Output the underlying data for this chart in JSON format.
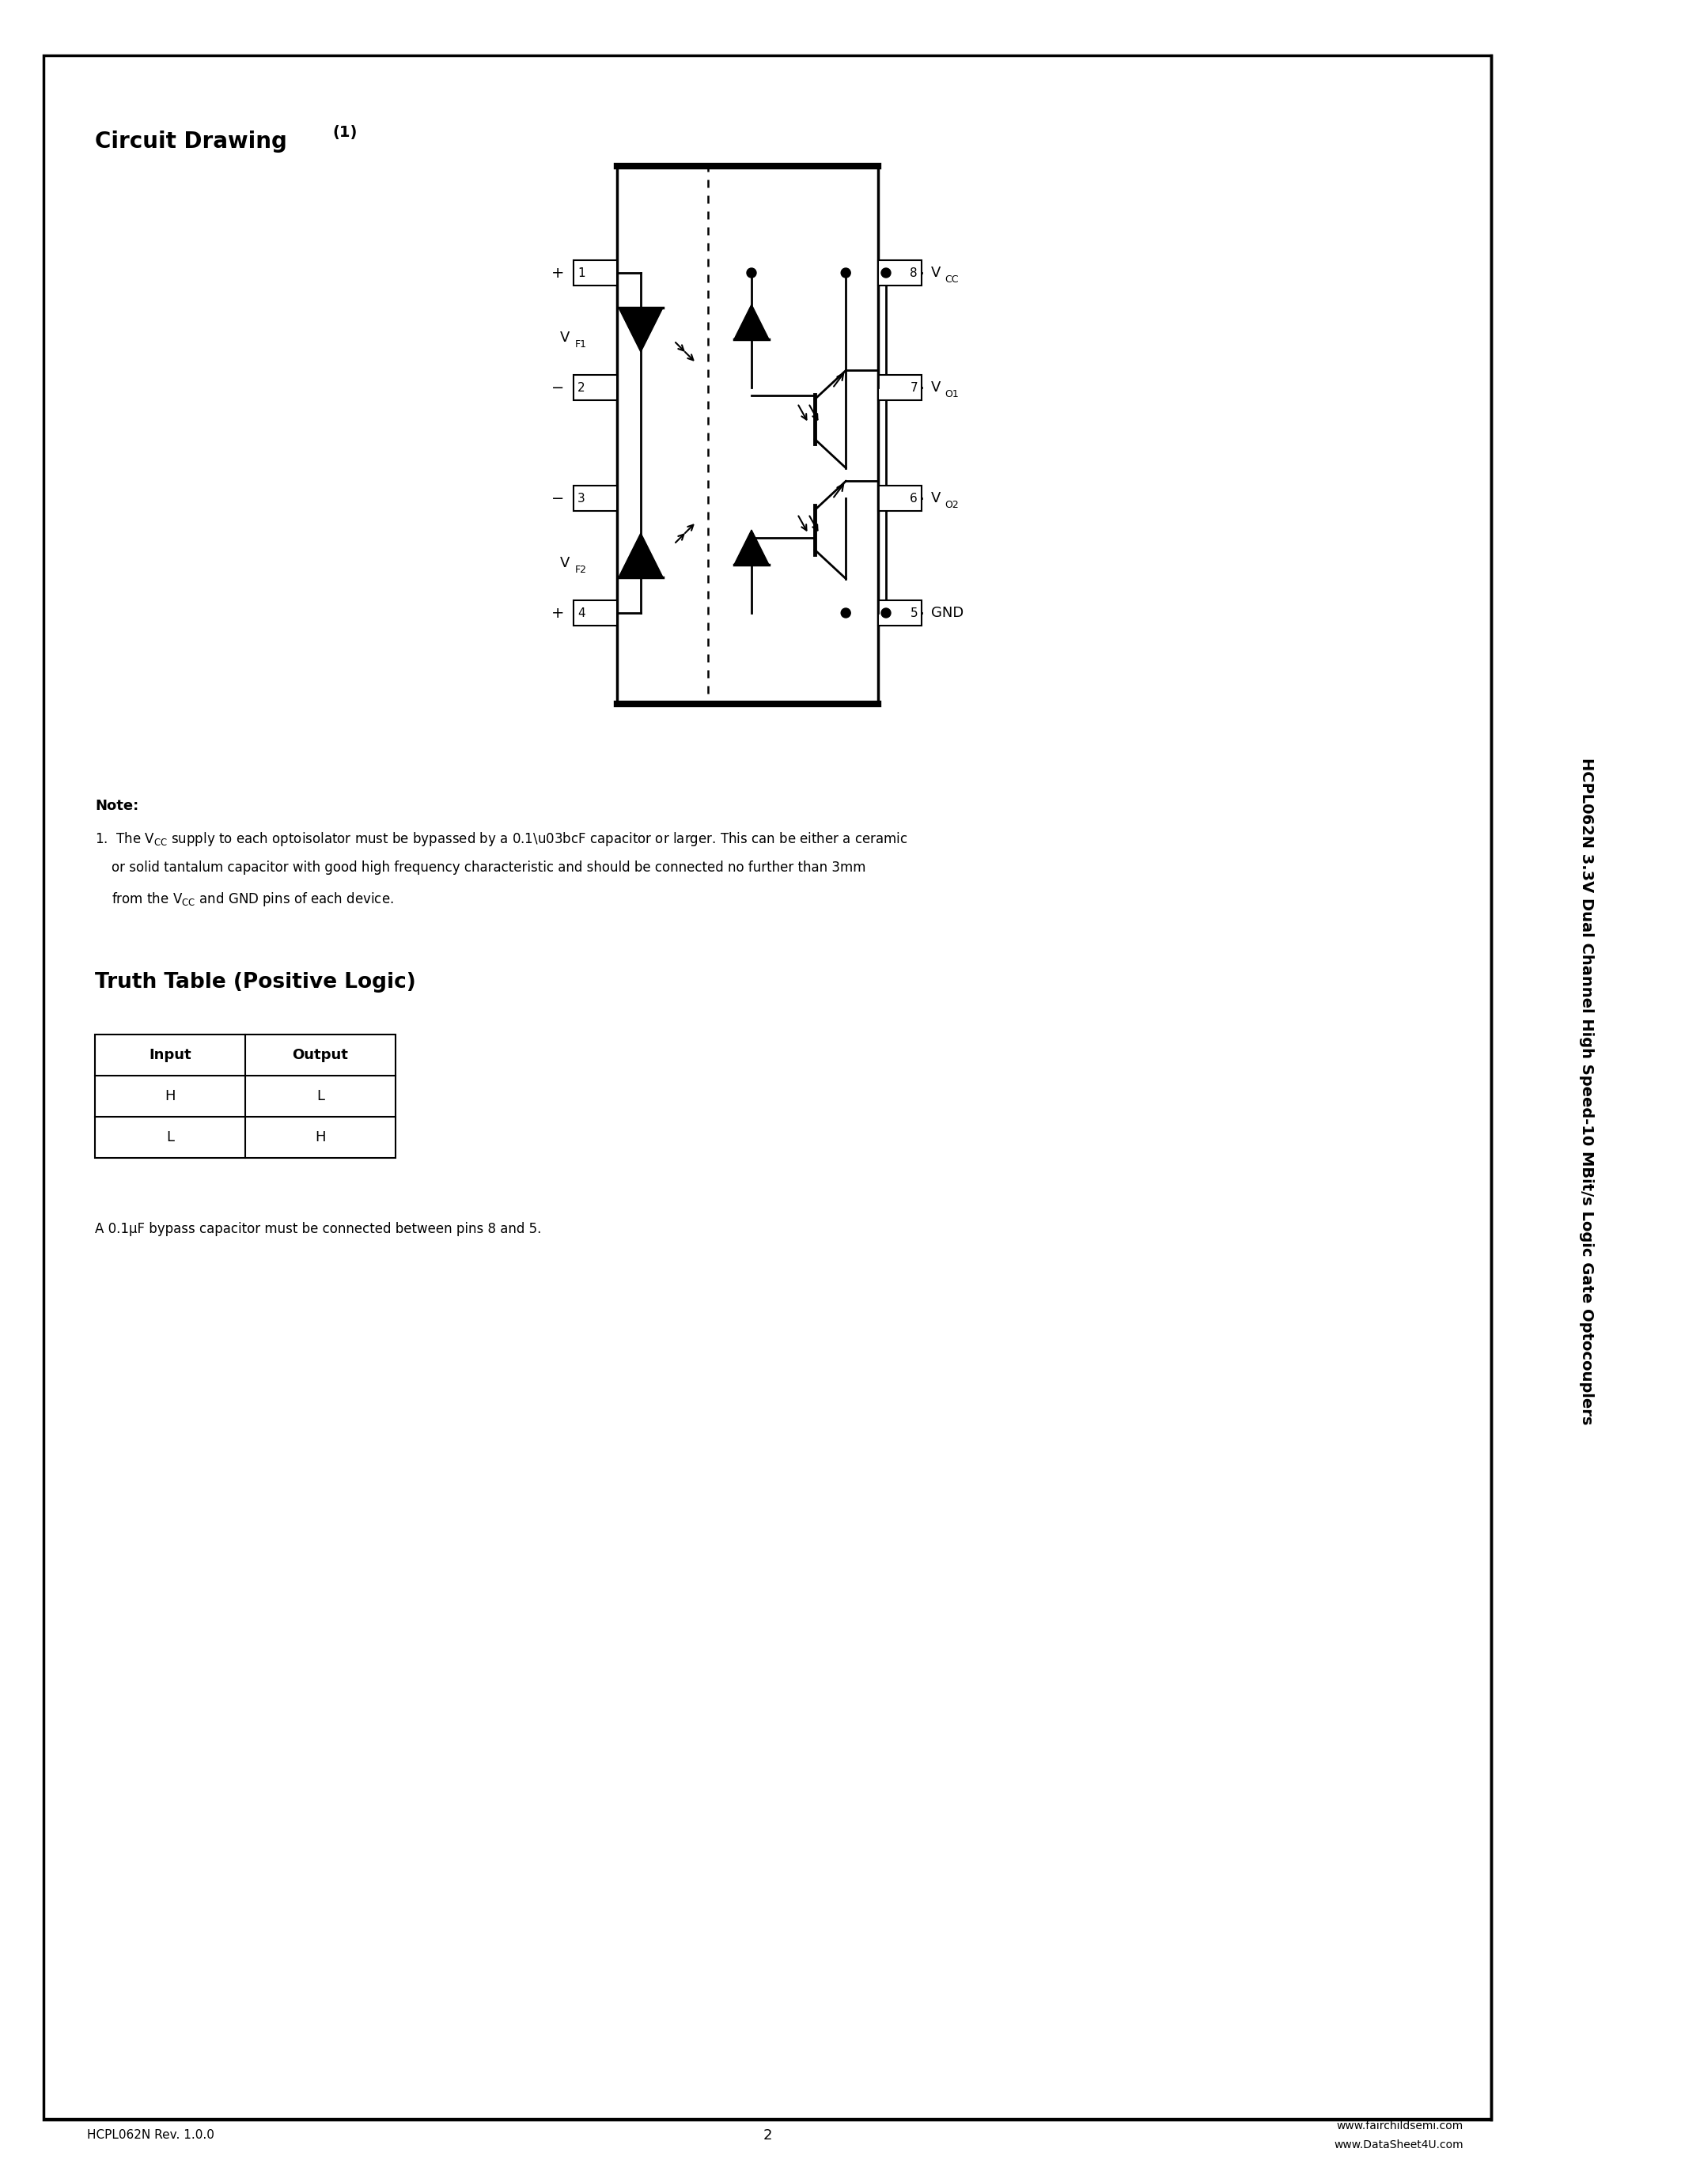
{
  "page_bg": "#ffffff",
  "circuit_title": "Circuit Drawing",
  "circuit_title_super": "(1)",
  "note_bold": "Note:",
  "note_line1": "1.  The V",
  "note_line1b": "CC",
  "note_line1c": " supply to each optoisolator must be bypassed by a 0.1μF capacitor or larger. This can be either a ceramic",
  "note_line2": "    or solid tantalum capacitor with good high frequency characteristic and should be connected no further than 3mm",
  "note_line3a": "    from the V",
  "note_line3b": "CC",
  "note_line3c": " and GND pins of each device.",
  "truth_table_title": "Truth Table (Positive Logic)",
  "truth_table_headers": [
    "Input",
    "Output"
  ],
  "truth_table_rows": [
    [
      "H",
      "L"
    ],
    [
      "L",
      "H"
    ]
  ],
  "bypass_note": "A 0.1μF bypass capacitor must be connected between pins 8 and 5.",
  "side_text": "HCPL062N 3.3V Dual Channel High Speed-10 MBit/s Logic Gate Optocouplers",
  "footer_left": "HCPL062N Rev. 1.0.0",
  "footer_center": "2",
  "footer_right1": "www.fairchildsemi.com",
  "footer_right2": "www.DataSheet4U.com"
}
